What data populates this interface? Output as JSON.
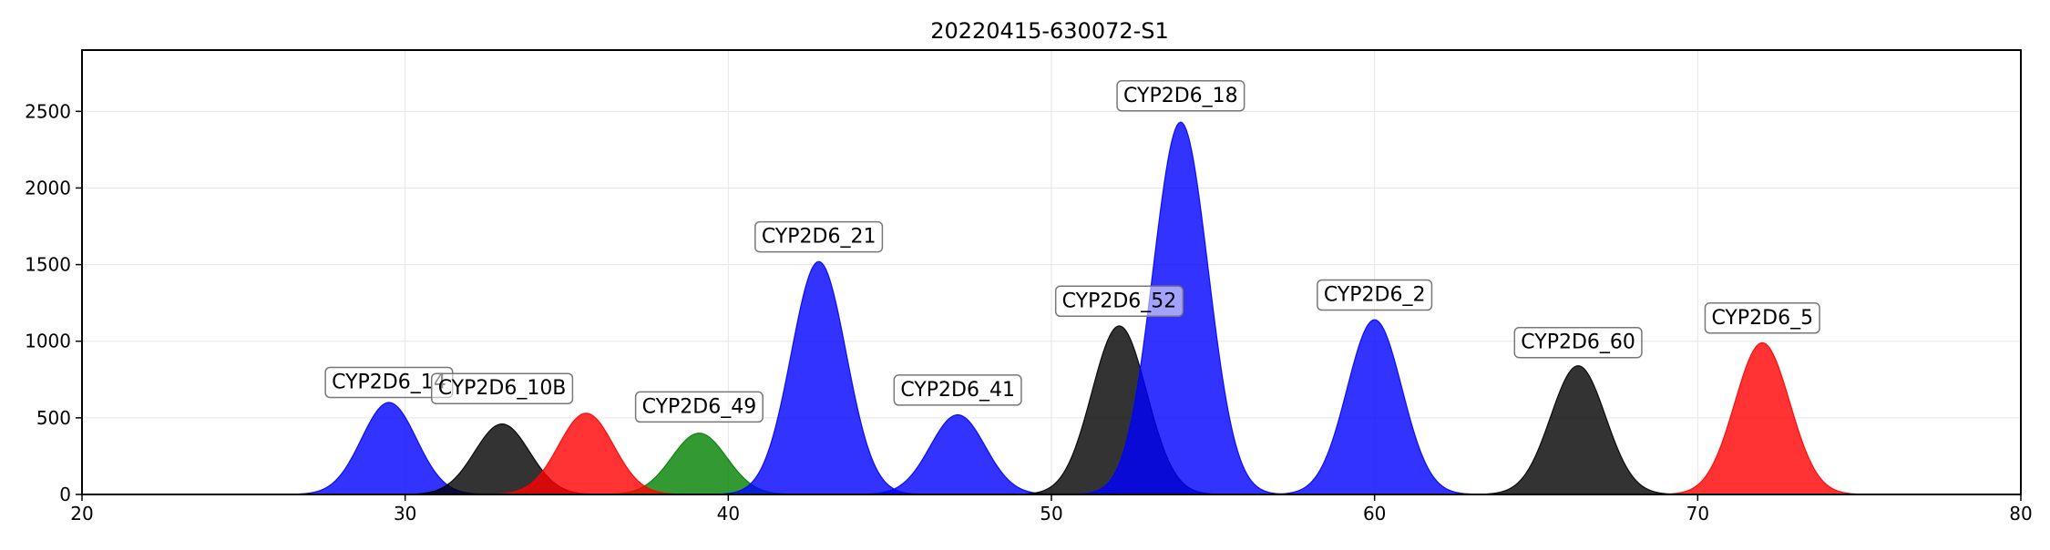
{
  "chart_data": {
    "type": "area",
    "title": "20220415-630072-S1",
    "xlabel": "",
    "ylabel": "",
    "xlim": [
      20,
      80
    ],
    "ylim": [
      0,
      2900
    ],
    "x_ticks": [
      20,
      30,
      40,
      50,
      60,
      70,
      80
    ],
    "y_ticks": [
      0,
      500,
      1000,
      1500,
      2000,
      2500
    ],
    "grid": true,
    "peaks": [
      {
        "name": "CYP2D6_14",
        "x": 29.5,
        "height": 600,
        "sigma": 0.85,
        "color": "#0000ff",
        "label_y": 740
      },
      {
        "name": "CYP2D6_10B",
        "x": 33.0,
        "height": 460,
        "sigma": 0.85,
        "color": "#000000",
        "label_y": 700
      },
      {
        "name": "CYP2D6_49",
        "x": 39.1,
        "height": 400,
        "sigma": 0.85,
        "color": "#008000",
        "label_y": 580
      },
      {
        "name": "CYP2D6_21",
        "x": 42.8,
        "height": 1520,
        "sigma": 0.85,
        "color": "#0000ff",
        "label_y": 1690
      },
      {
        "name": "CYP2D6_41",
        "x": 47.1,
        "height": 520,
        "sigma": 0.85,
        "color": "#0000ff",
        "label_y": 690
      },
      {
        "name": "CYP2D6_52",
        "x": 52.1,
        "height": 1100,
        "sigma": 0.85,
        "color": "#000000",
        "label_y": 1270
      },
      {
        "name": "CYP2D6_18",
        "x": 54.0,
        "height": 2430,
        "sigma": 0.85,
        "color": "#0000ff",
        "label_y": 2610
      },
      {
        "name": "CYP2D6_2",
        "x": 60.0,
        "height": 1140,
        "sigma": 0.85,
        "color": "#0000ff",
        "label_y": 1310
      },
      {
        "name": "CYP2D6_60",
        "x": 66.3,
        "height": 840,
        "sigma": 0.85,
        "color": "#000000",
        "label_y": 1000
      },
      {
        "name": "CYP2D6_5",
        "x": 72.0,
        "height": 990,
        "sigma": 0.85,
        "color": "#ff0000",
        "label_y": 1160
      }
    ],
    "unlabeled_peaks": [
      {
        "x": 35.6,
        "height": 530,
        "sigma": 0.85,
        "color": "#ff0000"
      }
    ]
  }
}
